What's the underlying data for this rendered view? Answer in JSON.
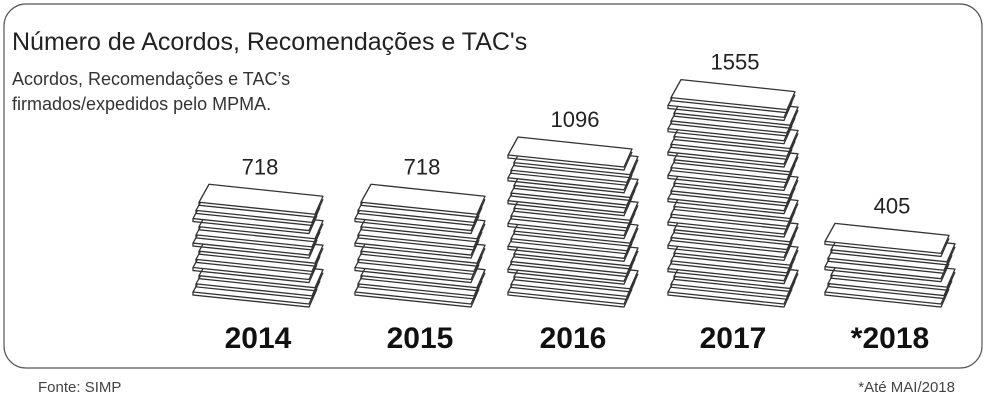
{
  "chart_data": {
    "type": "pictograph",
    "title": "Número de Acordos, Recomendações e TAC's",
    "subtitle": [
      "Acordos, Recomendações e TAC’s",
      "firmados/expedidos pelo MPMA."
    ],
    "categories": [
      "2014",
      "2015",
      "2016",
      "2017",
      "*2018"
    ],
    "values": [
      718,
      718,
      1096,
      1555,
      405
    ],
    "source": "Fonte: SIMP",
    "note": "*Até MAI/2018"
  }
}
